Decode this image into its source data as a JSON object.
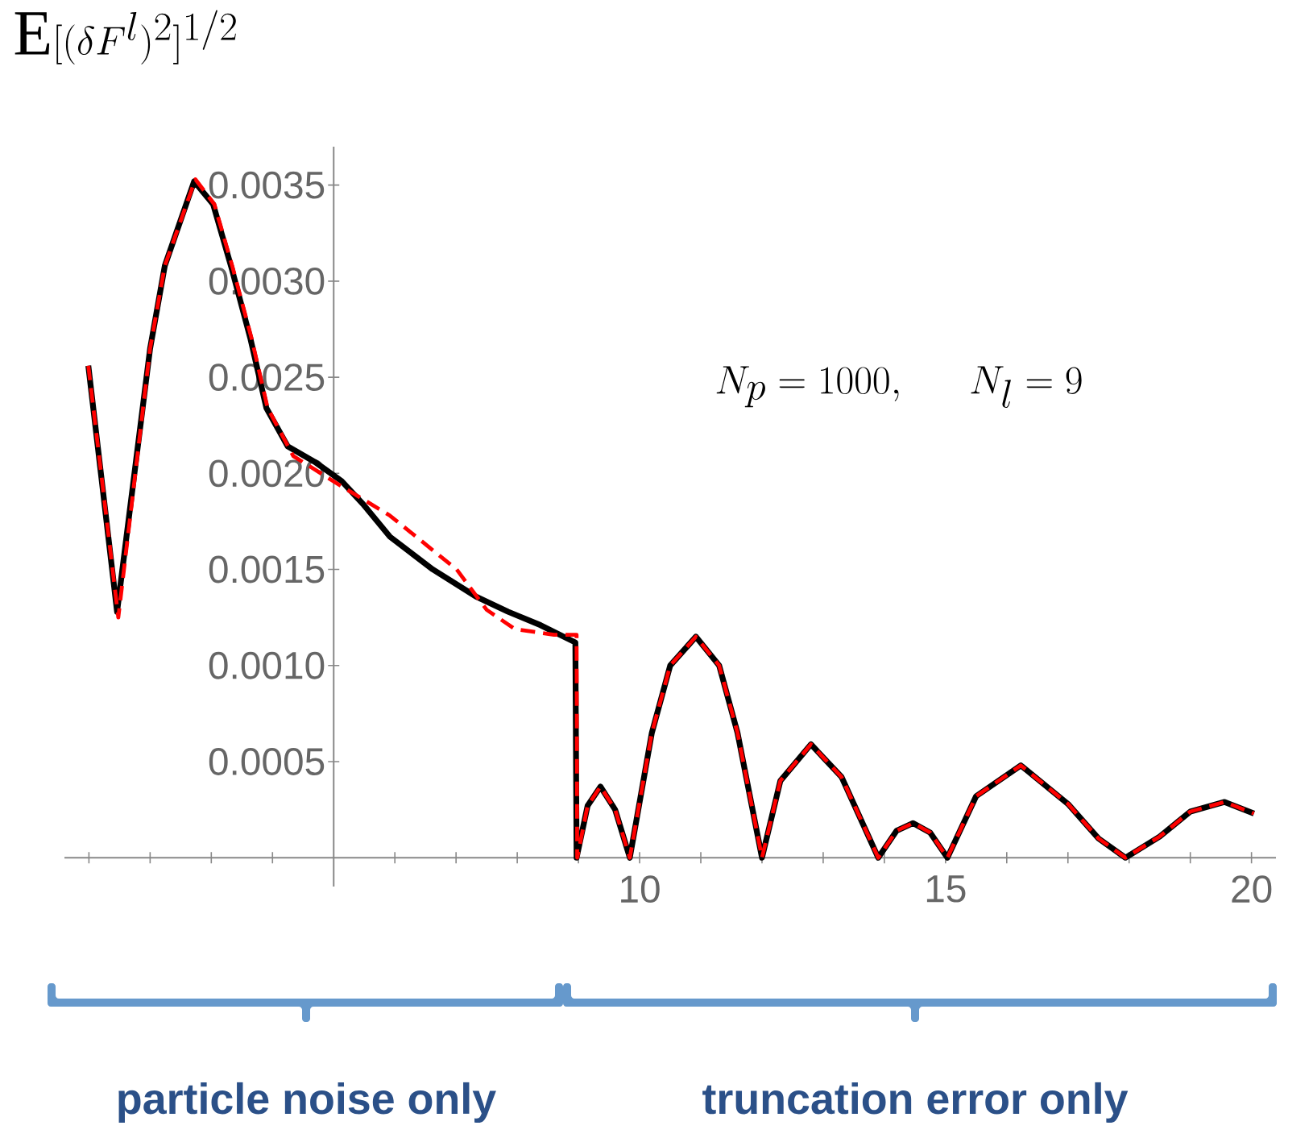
{
  "chart_data": {
    "type": "line",
    "annotations": [
      "\\mathrm{E}[(\\delta F^l)^2]^{1/2}",
      "N_p = 1000,\\quad N_l = 9",
      "particle noise only",
      "truncation error only"
    ],
    "xlim": [
      0.6,
      20.4
    ],
    "ylim": [
      -0.00015,
      0.0037
    ],
    "xticks": [
      {
        "value": 1,
        "label": null
      },
      {
        "value": 2,
        "label": null
      },
      {
        "value": 3,
        "label": null
      },
      {
        "value": 4,
        "label": null
      },
      {
        "value": 6,
        "label": null
      },
      {
        "value": 7,
        "label": null
      },
      {
        "value": 8,
        "label": null
      },
      {
        "value": 9,
        "label": null
      },
      10,
      {
        "value": 11,
        "label": null
      },
      {
        "value": 12,
        "label": null
      },
      {
        "value": 13,
        "label": null
      },
      {
        "value": 14,
        "label": null
      },
      15,
      {
        "value": 16,
        "label": null
      },
      {
        "value": 17,
        "label": null
      },
      {
        "value": 18,
        "label": null
      },
      {
        "value": 19,
        "label": null
      },
      20
    ],
    "yticks": [
      {
        "value": 0.0005,
        "label": "0.0005"
      },
      {
        "value": 0.001,
        "label": "0.0010"
      },
      {
        "value": 0.0015,
        "label": "0.0015"
      },
      {
        "value": 0.002,
        "label": "0.0020"
      },
      {
        "value": 0.0025,
        "label": "0.0025"
      },
      {
        "value": 0.003,
        "label": "0.0030"
      },
      {
        "value": 0.0035,
        "label": "0.0035"
      }
    ],
    "marker": "none",
    "series": [
      {
        "color": "#000000",
        "line_style": "solid",
        "x": [
          0.99,
          1.46,
          2.0,
          2.24,
          2.72,
          3.03,
          3.33,
          3.64,
          3.9,
          4.25,
          4.69,
          5.13,
          5.48,
          5.92,
          6.62,
          7.32,
          7.85,
          8.38,
          8.95,
          8.97,
          9.15,
          9.36,
          9.6,
          9.84,
          10.2,
          10.5,
          10.92,
          11.3,
          11.6,
          12.0,
          12.3,
          12.8,
          13.3,
          13.9,
          14.2,
          14.47,
          14.75,
          15.03,
          15.5,
          16.23,
          17.0,
          17.5,
          17.94,
          18.5,
          19.0,
          19.56,
          20.04
        ],
        "values": [
          0.00256,
          0.00128,
          0.00265,
          0.00308,
          0.00352,
          0.0034,
          0.00307,
          0.0027,
          0.00234,
          0.00214,
          0.00206,
          0.00196,
          0.00184,
          0.00167,
          0.0015,
          0.00136,
          0.00128,
          0.00121,
          0.00112,
          0,
          0.00027,
          0.00037,
          0.00025,
          0,
          0.00065,
          0.001,
          0.00115,
          0.001,
          0.00065,
          0,
          0.0004,
          0.00059,
          0.00042,
          0,
          0.00014,
          0.00018,
          0.00013,
          0,
          0.00032,
          0.00048,
          0.00028,
          0.0001,
          0,
          0.00011,
          0.00024,
          0.00029,
          0.00023
        ]
      },
      {
        "color": "#ff0000",
        "line_style": "dashed",
        "x": [
          0.99,
          1.48,
          2.0,
          2.24,
          2.74,
          3.05,
          3.35,
          3.66,
          3.92,
          4.34,
          5.04,
          5.92,
          7.01,
          7.5,
          7.96,
          8.6,
          8.97,
          8.98,
          9.15,
          9.36,
          9.6,
          9.84,
          10.2,
          10.5,
          10.92,
          11.3,
          11.6,
          12.0,
          12.3,
          12.8,
          13.3,
          13.9,
          14.2,
          14.47,
          14.75,
          15.03,
          15.5,
          16.23,
          17.0,
          17.5,
          17.94,
          18.5,
          19.0,
          19.56,
          20.04
        ],
        "values": [
          0.00256,
          0.00125,
          0.00265,
          0.00308,
          0.00353,
          0.0034,
          0.00307,
          0.0027,
          0.00234,
          0.00209,
          0.00195,
          0.00178,
          0.0015,
          0.00129,
          0.00119,
          0.00116,
          0.00116,
          0,
          0.00027,
          0.00037,
          0.00025,
          0,
          0.00065,
          0.001,
          0.00115,
          0.001,
          0.00065,
          0,
          0.0004,
          0.00059,
          0.00042,
          0,
          0.00014,
          0.00018,
          0.00013,
          0,
          0.00032,
          0.00048,
          0.00028,
          0.0001,
          0,
          0.00011,
          0.00024,
          0.00029,
          0.00023
        ]
      }
    ]
  }
}
